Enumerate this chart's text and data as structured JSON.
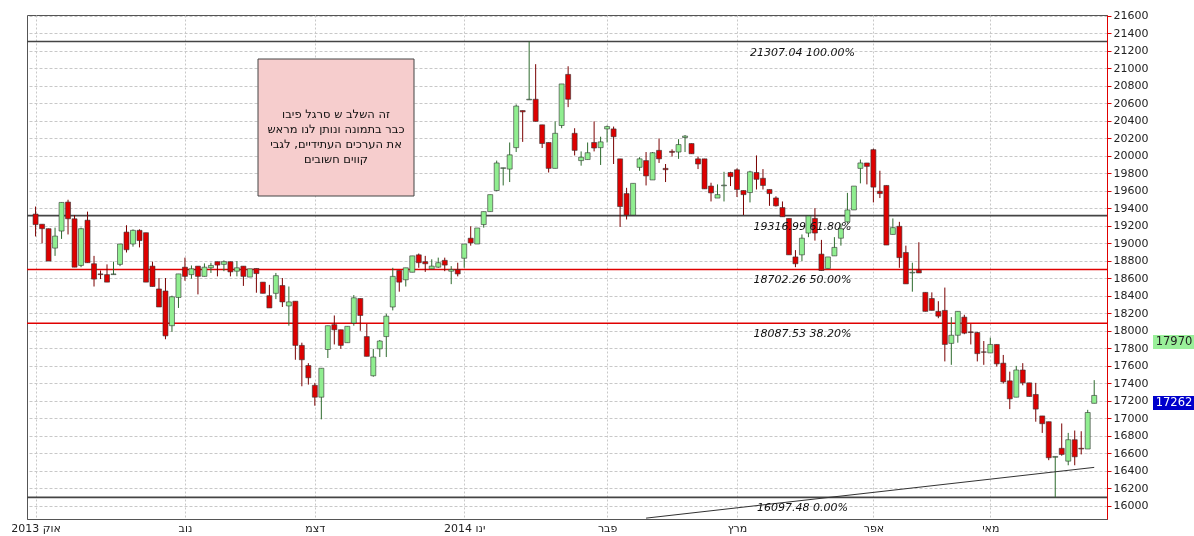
{
  "chart_data": {
    "type": "candlestick",
    "categories": [
      "אוק 2013",
      null,
      null,
      null,
      null,
      null,
      null,
      null,
      null,
      null,
      null,
      null,
      null,
      null,
      null,
      null,
      null,
      null,
      null,
      null,
      null,
      null,
      null,
      "נוב",
      null,
      null,
      null,
      null,
      null,
      null,
      null,
      null,
      null,
      null,
      null,
      null,
      null,
      null,
      null,
      null,
      null,
      null,
      null,
      "דצמ",
      null,
      null,
      null,
      null,
      null,
      null,
      null,
      null,
      null,
      null,
      null,
      null,
      null,
      null,
      null,
      null,
      null,
      null,
      null,
      null,
      null,
      null,
      "ינו 2014",
      null,
      null,
      null,
      null,
      null,
      null,
      null,
      null,
      null,
      null,
      null,
      null,
      null,
      null,
      null,
      null,
      null,
      null,
      null,
      null,
      null,
      "פבר",
      null,
      null,
      null,
      null,
      null,
      null,
      null,
      null,
      null,
      null,
      null,
      null,
      null,
      null,
      null,
      null,
      null,
      null,
      null,
      "מרץ",
      null,
      null,
      null,
      null,
      null,
      null,
      null,
      null,
      null,
      null,
      null,
      null,
      null,
      null,
      null,
      null,
      null,
      null,
      null,
      null,
      "אפר",
      null,
      null,
      null,
      null,
      null,
      null,
      null,
      null,
      null,
      null,
      null,
      null,
      null,
      null,
      null,
      null,
      null,
      "מאי",
      null,
      null,
      null,
      null,
      null,
      null,
      null,
      null,
      null,
      null,
      null,
      null,
      null,
      null,
      null,
      null
    ],
    "ohlc": [
      [
        19335,
        19421,
        19079,
        19215
      ],
      [
        19219,
        19219,
        19001,
        19168
      ],
      [
        19168,
        19168,
        18798,
        18798
      ],
      [
        18946,
        19180,
        18857,
        19083
      ],
      [
        19141,
        19468,
        19051,
        19468
      ],
      [
        19472,
        19499,
        19102,
        19281
      ],
      [
        19281,
        19324,
        18728,
        18728
      ],
      [
        18748,
        19180,
        18728,
        19168
      ],
      [
        19265,
        19363,
        18779,
        18779
      ],
      [
        18767,
        18857,
        18507,
        18592
      ],
      [
        18651,
        18690,
        18592,
        18643
      ],
      [
        18643,
        18760,
        18557,
        18557
      ],
      [
        18643,
        18791,
        18643,
        18651
      ],
      [
        18760,
        18993,
        18740,
        18993
      ],
      [
        19129,
        19207,
        18896,
        18927
      ],
      [
        18993,
        19160,
        18962,
        19149
      ],
      [
        19149,
        19160,
        18954,
        19032
      ],
      [
        19122,
        19122,
        18557,
        18557
      ],
      [
        18740,
        18791,
        18507,
        18507
      ],
      [
        18479,
        18604,
        18273,
        18273
      ],
      [
        18456,
        18604,
        17904,
        17943
      ],
      [
        18059,
        18402,
        17989,
        18390
      ],
      [
        18382,
        18651,
        18262,
        18651
      ],
      [
        18728,
        18837,
        18573,
        18623
      ],
      [
        18643,
        18748,
        18596,
        18709
      ],
      [
        18740,
        18740,
        18417,
        18623
      ],
      [
        18623,
        18771,
        18623,
        18728
      ],
      [
        18721,
        18779,
        18662,
        18748
      ],
      [
        18791,
        18791,
        18623,
        18752
      ],
      [
        18760,
        18806,
        18682,
        18791
      ],
      [
        18791,
        18791,
        18623,
        18674
      ],
      [
        18682,
        18798,
        18623,
        18721
      ],
      [
        18740,
        18740,
        18514,
        18623
      ],
      [
        18615,
        18709,
        18615,
        18709
      ],
      [
        18713,
        18713,
        18436,
        18655
      ],
      [
        18557,
        18557,
        18429,
        18429
      ],
      [
        18402,
        18526,
        18262,
        18262
      ],
      [
        18429,
        18662,
        18363,
        18631
      ],
      [
        18518,
        18604,
        18273,
        18331
      ],
      [
        18285,
        18507,
        18059,
        18331
      ],
      [
        18339,
        18339,
        17670,
        17834
      ],
      [
        17834,
        17865,
        17367,
        17670
      ],
      [
        17604,
        17631,
        17386,
        17464
      ],
      [
        17378,
        17406,
        17145,
        17242
      ],
      [
        17242,
        17573,
        16989,
        17573
      ],
      [
        17787,
        18059,
        17690,
        18059
      ],
      [
        18071,
        18176,
        17845,
        18013
      ],
      [
        18013,
        18013,
        17795,
        17834
      ],
      [
        17865,
        18052,
        17865,
        18052
      ],
      [
        18090,
        18409,
        18059,
        18378
      ],
      [
        18370,
        18370,
        18001,
        18176
      ],
      [
        17935,
        18079,
        17709,
        17709
      ],
      [
        17487,
        17795,
        17476,
        17701
      ],
      [
        17795,
        17896,
        17701,
        17884
      ],
      [
        17935,
        18196,
        17701,
        18168
      ],
      [
        18273,
        18721,
        18234,
        18623
      ],
      [
        18690,
        18690,
        18448,
        18557
      ],
      [
        18584,
        18721,
        18507,
        18721
      ],
      [
        18670,
        18857,
        18670,
        18857
      ],
      [
        18869,
        18884,
        18721,
        18779
      ],
      [
        18791,
        18857,
        18674,
        18767
      ],
      [
        18709,
        18818,
        18709,
        18740
      ],
      [
        18728,
        18837,
        18721,
        18779
      ],
      [
        18806,
        18837,
        18682,
        18752
      ],
      [
        18682,
        18740,
        18534,
        18701
      ],
      [
        18701,
        18779,
        18623,
        18651
      ],
      [
        18830,
        18993,
        18721,
        18993
      ],
      [
        19059,
        19195,
        18974,
        19005
      ],
      [
        18993,
        19176,
        18993,
        19176
      ],
      [
        19215,
        19363,
        19180,
        19363
      ],
      [
        19363,
        19557,
        19363,
        19557
      ],
      [
        19604,
        19946,
        19596,
        19919
      ],
      [
        19857,
        19864,
        19662,
        19864
      ],
      [
        19849,
        20153,
        19701,
        20012
      ],
      [
        20094,
        20588,
        20044,
        20569
      ],
      [
        20518,
        20518,
        20160,
        20503
      ],
      [
        20640,
        21307,
        20640,
        20647
      ],
      [
        20647,
        21048,
        20394,
        20394
      ],
      [
        20355,
        20355,
        20090,
        20141
      ],
      [
        20153,
        20153,
        19810,
        19857
      ],
      [
        19857,
        20394,
        19857,
        20258
      ],
      [
        20347,
        20822,
        20316,
        20822
      ],
      [
        20931,
        21024,
        20557,
        20647
      ],
      [
        20258,
        20316,
        20005,
        20063
      ],
      [
        19946,
        20051,
        19888,
        19985
      ],
      [
        19958,
        20153,
        19958,
        20036
      ],
      [
        20153,
        20394,
        20051,
        20090
      ],
      [
        20094,
        20219,
        19896,
        20160
      ],
      [
        20308,
        20347,
        20153,
        20335
      ],
      [
        20308,
        20335,
        19907,
        20219
      ],
      [
        19966,
        19966,
        19188,
        19421
      ],
      [
        19569,
        19635,
        19273,
        19324
      ],
      [
        19324,
        19686,
        19324,
        19686
      ],
      [
        19869,
        19985,
        19830,
        19966
      ],
      [
        19946,
        20044,
        19662,
        19771
      ],
      [
        19725,
        20044,
        19725,
        20036
      ],
      [
        20063,
        20199,
        19919,
        19966
      ],
      [
        19857,
        19907,
        19701,
        19842
      ],
      [
        20052,
        20075,
        19993,
        20040
      ],
      [
        20044,
        20191,
        19966,
        20129
      ],
      [
        20210,
        20238,
        20044,
        20226
      ],
      [
        20141,
        20141,
        20024,
        20024
      ],
      [
        19966,
        19993,
        19849,
        19907
      ],
      [
        19966,
        19966,
        19623,
        19623
      ],
      [
        19655,
        19693,
        19479,
        19577
      ],
      [
        19518,
        19674,
        19518,
        19557
      ],
      [
        19658,
        19818,
        19479,
        19666
      ],
      [
        19810,
        19818,
        19655,
        19763
      ],
      [
        19841,
        19857,
        19530,
        19616
      ],
      [
        19604,
        19604,
        19324,
        19557
      ],
      [
        19581,
        19830,
        19468,
        19818
      ],
      [
        19810,
        20005,
        19616,
        19732
      ],
      [
        19744,
        19849,
        19616,
        19662
      ],
      [
        19616,
        19616,
        19429,
        19569
      ],
      [
        19519,
        19538,
        19421,
        19429
      ],
      [
        19409,
        19479,
        19304,
        19304
      ],
      [
        19285,
        19285,
        18869,
        18869
      ],
      [
        18845,
        18923,
        18728,
        18767
      ],
      [
        18869,
        19102,
        18798,
        19059
      ],
      [
        19118,
        19324,
        19071,
        19312
      ],
      [
        19285,
        19402,
        19032,
        19118
      ],
      [
        18877,
        19040,
        18690,
        18690
      ],
      [
        18713,
        18845,
        18713,
        18845
      ],
      [
        18857,
        19071,
        18857,
        18954
      ],
      [
        19059,
        19226,
        18974,
        19168
      ],
      [
        19246,
        19577,
        19226,
        19382
      ],
      [
        19382,
        19655,
        19382,
        19655
      ],
      [
        19857,
        19958,
        19686,
        19919
      ],
      [
        19919,
        19919,
        19674,
        19880
      ],
      [
        20071,
        20082,
        19468,
        19643
      ],
      [
        19596,
        19830,
        19518,
        19569
      ],
      [
        19662,
        19662,
        18981,
        18981
      ],
      [
        19102,
        19285,
        19102,
        19180
      ],
      [
        19195,
        19246,
        18721,
        18837
      ],
      [
        18896,
        18974,
        18537,
        18537
      ],
      [
        18662,
        18779,
        18448,
        18670
      ],
      [
        18694,
        19013,
        18662,
        18662
      ],
      [
        18440,
        18440,
        18223,
        18223
      ],
      [
        18370,
        18440,
        18234,
        18234
      ],
      [
        18223,
        18339,
        18145,
        18168
      ],
      [
        18234,
        18495,
        17651,
        17845
      ],
      [
        17857,
        18157,
        17612,
        17950
      ],
      [
        17950,
        18223,
        17865,
        18223
      ],
      [
        18157,
        18184,
        17962,
        17974
      ],
      [
        17989,
        18079,
        17845,
        17981
      ],
      [
        17981,
        17989,
        17651,
        17740
      ],
      [
        17760,
        17884,
        17612,
        17756
      ],
      [
        17748,
        17923,
        17748,
        17845
      ],
      [
        17845,
        17845,
        17592,
        17623
      ],
      [
        17631,
        17725,
        17397,
        17417
      ],
      [
        17429,
        17534,
        17106,
        17223
      ],
      [
        17242,
        17600,
        17242,
        17553
      ],
      [
        17553,
        17631,
        17378,
        17406
      ],
      [
        17406,
        17406,
        17250,
        17250
      ],
      [
        17273,
        17406,
        16962,
        17106
      ],
      [
        17028,
        17028,
        16834,
        16939
      ],
      [
        16962,
        16962,
        16522,
        16550
      ],
      [
        16555,
        16565,
        16097,
        16565
      ],
      [
        16658,
        16942,
        16573,
        16588
      ],
      [
        16511,
        16834,
        16464,
        16756
      ],
      [
        16756,
        16861,
        16464,
        16561
      ],
      [
        16658,
        16853,
        16588,
        16650
      ],
      [
        16650,
        17098,
        16650,
        17067
      ],
      [
        17172,
        17437,
        17172,
        17262
      ]
    ],
    "series": [
      {
        "type": "line",
        "values": [
          null,
          null,
          null,
          null,
          null,
          null,
          null,
          null,
          null,
          null,
          null,
          null,
          null,
          null,
          null,
          null,
          null,
          null,
          null,
          null,
          null,
          null,
          null,
          null,
          null,
          null,
          null,
          null,
          null,
          null,
          null,
          null,
          null,
          null,
          null,
          null,
          null,
          null,
          null,
          null,
          null,
          null,
          null,
          null,
          null,
          null,
          null,
          null,
          null,
          null,
          null,
          null,
          null,
          null,
          null,
          null,
          null,
          null,
          null,
          null,
          null,
          null,
          null,
          null,
          null,
          null,
          null,
          null,
          null,
          null,
          null,
          null,
          null,
          null,
          null,
          null,
          null,
          null,
          null,
          null,
          null,
          null,
          null,
          null,
          null,
          null,
          null,
          null,
          null,
          null,
          null,
          null,
          null,
          null,
          15860,
          null,
          null,
          null,
          null,
          null,
          null,
          null,
          null,
          null,
          null,
          null,
          null,
          null,
          null,
          null,
          null,
          null,
          null,
          null,
          null,
          null,
          null,
          null,
          null,
          null,
          null,
          null,
          null,
          null,
          null,
          null,
          null,
          null,
          null,
          null,
          null,
          null,
          null,
          null,
          null,
          null,
          null,
          null,
          null,
          null,
          null,
          null,
          null,
          null,
          null,
          null,
          null,
          null,
          null,
          null,
          null,
          null,
          null,
          null,
          null,
          null,
          null,
          null,
          null,
          null,
          null,
          null,
          null,
          16440
        ],
        "color": "#333333"
      }
    ],
    "ylim": [
      15850,
      21610
    ],
    "yticks": [
      16000,
      16200,
      16400,
      16600,
      16800,
      17000,
      17200,
      17400,
      17600,
      17800,
      18000,
      18200,
      18400,
      18600,
      18800,
      19000,
      19200,
      19400,
      19600,
      19800,
      20000,
      20200,
      20400,
      20600,
      20800,
      21000,
      21200,
      21400,
      21600
    ],
    "grid": true,
    "ref_lines": [
      {
        "axis": "y",
        "value": 21307.04,
        "label": "21307.04 100.00%",
        "color": "#444444"
      },
      {
        "axis": "y",
        "value": 19316.99,
        "label": "19316.99 61.80%",
        "color": "#444444"
      },
      {
        "axis": "y",
        "value": 18702.26,
        "label": "18702.26 50.00%",
        "color": "#e00000"
      },
      {
        "axis": "y",
        "value": 18087.53,
        "label": "18087.53 38.20%",
        "color": "#e00000"
      },
      {
        "axis": "y",
        "value": 16097.48,
        "label": "16097.48 0.00%",
        "color": "#444444"
      }
    ],
    "annotations": [
      "זה  השלב  ש סרגל  פיבו\nכבר  בתמונה ונותן לנו  מראש\nאת  הערכים העתידיים, לגבי\nקווים  חשובים",
      "17970",
      "17262"
    ]
  }
}
